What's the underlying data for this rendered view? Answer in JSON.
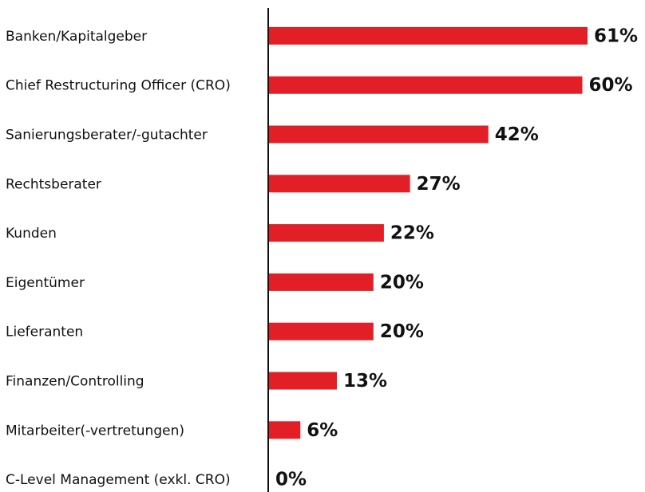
{
  "chart_data": {
    "type": "hbar",
    "categories": [
      "Banken/Kapitalgeber",
      "Chief Restructuring Officer (CRO)",
      "Sanierungsberater/-gutachter",
      "Rechtsberater",
      "Kunden",
      "Eigentümer",
      "Lieferanten",
      "Finanzen/Controlling",
      "Mitarbeiter(-vertretungen)",
      "C-Level Management (exkl. CRO)"
    ],
    "values": [
      61,
      60,
      42,
      27,
      22,
      20,
      20,
      13,
      6,
      0
    ],
    "value_labels": [
      "61%",
      "60%",
      "42%",
      "27%",
      "22%",
      "20%",
      "20%",
      "13%",
      "6%",
      "0%"
    ],
    "color": "#e21f26",
    "xlim": [
      0,
      72
    ]
  }
}
